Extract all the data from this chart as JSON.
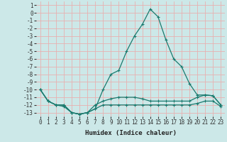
{
  "xlabel": "Humidex (Indice chaleur)",
  "x": [
    0,
    1,
    2,
    3,
    4,
    5,
    6,
    7,
    8,
    9,
    10,
    11,
    12,
    13,
    14,
    15,
    16,
    17,
    18,
    19,
    20,
    21,
    22,
    23
  ],
  "line_max": [
    -10.0,
    -11.5,
    -12.0,
    -12.0,
    -13.0,
    -13.2,
    -13.0,
    -12.5,
    -10.0,
    -8.0,
    -7.5,
    -5.0,
    -3.0,
    -1.5,
    0.5,
    -0.5,
    -3.5,
    -6.0,
    -7.0,
    -9.2,
    -10.7,
    -10.7,
    -10.8,
    -12.0
  ],
  "line_mean": [
    -10.0,
    -11.5,
    -12.0,
    -12.0,
    -13.0,
    -13.2,
    -13.0,
    -12.0,
    -11.5,
    -11.2,
    -11.0,
    -11.0,
    -11.0,
    -11.2,
    -11.5,
    -11.5,
    -11.5,
    -11.5,
    -11.5,
    -11.5,
    -11.0,
    -10.7,
    -10.8,
    -12.0
  ],
  "line_min": [
    -10.0,
    -11.5,
    -12.0,
    -12.2,
    -13.0,
    -13.2,
    -13.0,
    -12.5,
    -12.0,
    -12.0,
    -12.0,
    -12.0,
    -12.0,
    -12.0,
    -12.0,
    -12.0,
    -12.0,
    -12.0,
    -12.0,
    -12.0,
    -11.8,
    -11.5,
    -11.5,
    -12.2
  ],
  "line_color": "#1a7a6e",
  "bg_color": "#cce8e8",
  "grid_color": "#e8b0b0",
  "ylim": [
    -13.5,
    1.5
  ],
  "yticks": [
    1,
    0,
    -1,
    -2,
    -3,
    -4,
    -5,
    -6,
    -7,
    -8,
    -9,
    -10,
    -11,
    -12,
    -13
  ],
  "xticks": [
    0,
    1,
    2,
    3,
    4,
    5,
    6,
    7,
    8,
    9,
    10,
    11,
    12,
    13,
    14,
    15,
    16,
    17,
    18,
    19,
    20,
    21,
    22,
    23
  ],
  "tick_fontsize": 5.5,
  "xlabel_fontsize": 6.5,
  "lw": 0.9,
  "marker_size": 2.5
}
